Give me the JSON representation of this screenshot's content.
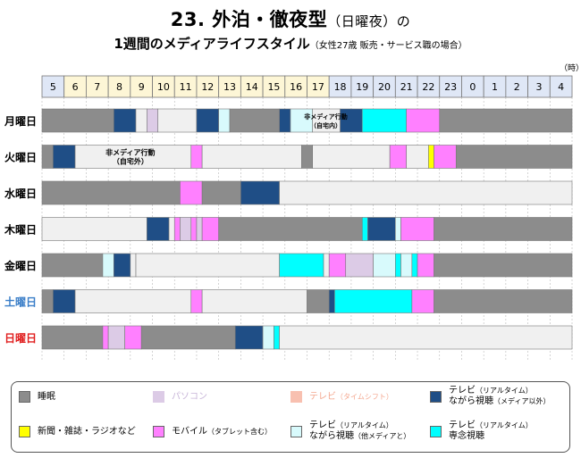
{
  "title": {
    "main": "23. 外泊・徹夜型",
    "main_suffix": "（日曜夜）の",
    "sub": "1週間のメディアライフスタイル",
    "sub_note": "（女性27歳 販売・サービス職の場合）"
  },
  "unit_label": "（時）",
  "legend": [
    {
      "key": "sleep",
      "label": "睡眠",
      "color": "#8c8c8c"
    },
    {
      "key": "pc",
      "label": "パソコン",
      "color": "#dccbe6"
    },
    {
      "key": "tv_shift",
      "label": "テレビ（タイムシフト）",
      "color": "#f8c0b0"
    },
    {
      "key": "tv_real_non",
      "label": "テレビ（リアルタイム）ながら視聴（メディア以外）",
      "color": "#1f4e86"
    },
    {
      "key": "paper",
      "label": "新聞・雑誌・ラジオなど",
      "color": "#ffff00"
    },
    {
      "key": "mobile",
      "label": "モバイル（タブレット含む）",
      "color": "#ff80ff"
    },
    {
      "key": "tv_real_other",
      "label": "テレビ（リアルタイム）ながら視聴（他メディアと）",
      "color": "#d8fafc"
    },
    {
      "key": "tv_real_focus",
      "label": "テレビ（リアルタイム）専念視聴",
      "color": "#00ffff"
    }
  ],
  "legend_text": [
    {
      "line1": "睡眠",
      "line2": "",
      "note": ""
    },
    {
      "line1": "パソコン",
      "line2": "",
      "note": ""
    },
    {
      "line1": "テレビ",
      "line2": "",
      "note": "（タイムシフト）"
    },
    {
      "line1": "テレビ",
      "line2": "ながら視聴",
      "note": "（リアルタイム）",
      "note2": "（メディア以外）"
    },
    {
      "line1": "新聞・雑誌・ラジオなど",
      "line2": "",
      "note": ""
    },
    {
      "line1": "モバイル",
      "line2": "",
      "note": "（タブレット含む）"
    },
    {
      "line1": "テレビ",
      "line2": "ながら視聴",
      "note": "（リアルタイム）",
      "note2": "（他メディアと）"
    },
    {
      "line1": "テレビ",
      "line2": "専念視聴",
      "note": "（リアルタイム）"
    }
  ],
  "chart_data": {
    "type": "timeline",
    "hours": [
      "5",
      "6",
      "7",
      "8",
      "9",
      "10",
      "11",
      "12",
      "13",
      "14",
      "15",
      "16",
      "17",
      "18",
      "19",
      "20",
      "21",
      "22",
      "23",
      "0",
      "1",
      "2",
      "3",
      "4"
    ],
    "days": [
      {
        "label": "月曜日",
        "color": "#000000",
        "segments": [
          {
            "start": 5,
            "end": 8.25,
            "type": "sleep"
          },
          {
            "start": 8.25,
            "end": 9.25,
            "type": "tv_real_non"
          },
          {
            "start": 9.25,
            "end": 9.75,
            "type": "none"
          },
          {
            "start": 9.75,
            "end": 10.25,
            "type": "pc"
          },
          {
            "start": 10.25,
            "end": 12,
            "type": "none"
          },
          {
            "start": 12,
            "end": 13,
            "type": "tv_real_non"
          },
          {
            "start": 13,
            "end": 13.5,
            "type": "tv_real_other"
          },
          {
            "start": 13.5,
            "end": 15.75,
            "type": "sleep"
          },
          {
            "start": 15.75,
            "end": 16.25,
            "type": "tv_real_non"
          },
          {
            "start": 16.25,
            "end": 17.25,
            "type": "tv_real_other"
          },
          {
            "start": 17.25,
            "end": 18.5,
            "type": "none"
          },
          {
            "start": 18.5,
            "end": 19.5,
            "type": "tv_real_non"
          },
          {
            "start": 19.5,
            "end": 21.5,
            "type": "tv_real_focus"
          },
          {
            "start": 21.5,
            "end": 23,
            "type": "mobile"
          },
          {
            "start": 23,
            "end": 29,
            "type": "sleep"
          }
        ],
        "annotation": "非メディア行動（自宅内）"
      },
      {
        "label": "火曜日",
        "color": "#000000",
        "segments": [
          {
            "start": 5,
            "end": 5.5,
            "type": "sleep"
          },
          {
            "start": 5.5,
            "end": 6.5,
            "type": "tv_real_non"
          },
          {
            "start": 6.5,
            "end": 11.75,
            "type": "none"
          },
          {
            "start": 11.75,
            "end": 12.25,
            "type": "mobile"
          },
          {
            "start": 12.25,
            "end": 16.75,
            "type": "none"
          },
          {
            "start": 16.75,
            "end": 17.25,
            "type": "sleep"
          },
          {
            "start": 17.25,
            "end": 20.75,
            "type": "none"
          },
          {
            "start": 20.75,
            "end": 21.5,
            "type": "mobile"
          },
          {
            "start": 21.5,
            "end": 22.5,
            "type": "none"
          },
          {
            "start": 22.5,
            "end": 22.75,
            "type": "paper"
          },
          {
            "start": 22.75,
            "end": 23.75,
            "type": "mobile"
          },
          {
            "start": 23.75,
            "end": 29,
            "type": "sleep"
          }
        ],
        "annotation": "非メディア行動（自宅外）"
      },
      {
        "label": "水曜日",
        "color": "#000000",
        "segments": [
          {
            "start": 5,
            "end": 11.25,
            "type": "sleep"
          },
          {
            "start": 11.25,
            "end": 12.25,
            "type": "mobile"
          },
          {
            "start": 12.25,
            "end": 14,
            "type": "sleep"
          },
          {
            "start": 14,
            "end": 15.75,
            "type": "tv_real_non"
          },
          {
            "start": 15.75,
            "end": 29,
            "type": "none"
          }
        ]
      },
      {
        "label": "木曜日",
        "color": "#000000",
        "segments": [
          {
            "start": 5,
            "end": 9.75,
            "type": "none"
          },
          {
            "start": 9.75,
            "end": 10.75,
            "type": "tv_real_non"
          },
          {
            "start": 10.75,
            "end": 11,
            "type": "none"
          },
          {
            "start": 11,
            "end": 11.25,
            "type": "mobile"
          },
          {
            "start": 11.25,
            "end": 11.75,
            "type": "pc"
          },
          {
            "start": 11.75,
            "end": 12,
            "type": "mobile"
          },
          {
            "start": 12,
            "end": 12.25,
            "type": "pc"
          },
          {
            "start": 12.25,
            "end": 13,
            "type": "mobile"
          },
          {
            "start": 13,
            "end": 19.5,
            "type": "sleep"
          },
          {
            "start": 19.5,
            "end": 19.75,
            "type": "tv_real_focus"
          },
          {
            "start": 19.75,
            "end": 21,
            "type": "tv_real_non"
          },
          {
            "start": 21,
            "end": 21.25,
            "type": "tv_real_other"
          },
          {
            "start": 21.25,
            "end": 22.75,
            "type": "mobile"
          },
          {
            "start": 22.75,
            "end": 29,
            "type": "sleep"
          }
        ]
      },
      {
        "label": "金曜日",
        "color": "#000000",
        "segments": [
          {
            "start": 5,
            "end": 7.75,
            "type": "sleep"
          },
          {
            "start": 7.75,
            "end": 8.25,
            "type": "tv_real_other"
          },
          {
            "start": 8.25,
            "end": 9,
            "type": "tv_real_non"
          },
          {
            "start": 9,
            "end": 9.25,
            "type": "none"
          },
          {
            "start": 9.25,
            "end": 15.75,
            "type": "none"
          },
          {
            "start": 15.75,
            "end": 17.75,
            "type": "tv_real_focus"
          },
          {
            "start": 17.75,
            "end": 18,
            "type": "none"
          },
          {
            "start": 18,
            "end": 18.75,
            "type": "mobile"
          },
          {
            "start": 18.75,
            "end": 20,
            "type": "pc"
          },
          {
            "start": 20,
            "end": 21,
            "type": "tv_real_other"
          },
          {
            "start": 21,
            "end": 21.25,
            "type": "tv_real_focus"
          },
          {
            "start": 21.25,
            "end": 21.75,
            "type": "tv_real_other"
          },
          {
            "start": 21.75,
            "end": 22,
            "type": "tv_real_focus"
          },
          {
            "start": 22,
            "end": 22.75,
            "type": "mobile"
          },
          {
            "start": 22.75,
            "end": 29,
            "type": "sleep"
          }
        ]
      },
      {
        "label": "土曜日",
        "color": "#3a7ec8",
        "segments": [
          {
            "start": 5,
            "end": 5.5,
            "type": "sleep"
          },
          {
            "start": 5.5,
            "end": 6.5,
            "type": "tv_real_non"
          },
          {
            "start": 6.5,
            "end": 11.75,
            "type": "none"
          },
          {
            "start": 11.75,
            "end": 12.25,
            "type": "mobile"
          },
          {
            "start": 12.25,
            "end": 17,
            "type": "none"
          },
          {
            "start": 17,
            "end": 18,
            "type": "sleep"
          },
          {
            "start": 18,
            "end": 18.25,
            "type": "tv_real_non"
          },
          {
            "start": 18.25,
            "end": 21.75,
            "type": "tv_real_focus"
          },
          {
            "start": 21.75,
            "end": 22.75,
            "type": "mobile"
          },
          {
            "start": 22.75,
            "end": 29,
            "type": "sleep"
          }
        ]
      },
      {
        "label": "日曜日",
        "color": "#e01e1e",
        "segments": [
          {
            "start": 5,
            "end": 7.75,
            "type": "sleep"
          },
          {
            "start": 7.75,
            "end": 8,
            "type": "mobile"
          },
          {
            "start": 8,
            "end": 8.75,
            "type": "pc"
          },
          {
            "start": 8.75,
            "end": 9.5,
            "type": "mobile"
          },
          {
            "start": 9.5,
            "end": 13.75,
            "type": "sleep"
          },
          {
            "start": 13.75,
            "end": 15,
            "type": "tv_real_non"
          },
          {
            "start": 15,
            "end": 15.5,
            "type": "tv_real_other"
          },
          {
            "start": 15.5,
            "end": 15.75,
            "type": "tv_real_focus"
          },
          {
            "start": 15.75,
            "end": 29,
            "type": "none"
          }
        ]
      }
    ]
  }
}
